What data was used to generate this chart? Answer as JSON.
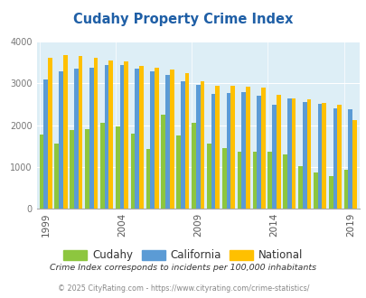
{
  "title": "Cudahy Property Crime Index",
  "years": [
    1999,
    2000,
    2001,
    2002,
    2003,
    2004,
    2005,
    2006,
    2007,
    2008,
    2009,
    2010,
    2011,
    2012,
    2013,
    2014,
    2015,
    2016,
    2017,
    2018,
    2019
  ],
  "cudahy": [
    1780,
    1560,
    1880,
    1900,
    2060,
    1980,
    1800,
    1420,
    2250,
    1750,
    2060,
    1560,
    1450,
    1370,
    1370,
    1370,
    1300,
    1020,
    870,
    790,
    940
  ],
  "california": [
    3100,
    3300,
    3350,
    3380,
    3450,
    3450,
    3350,
    3300,
    3200,
    3060,
    2970,
    2750,
    2760,
    2800,
    2700,
    2490,
    2630,
    2560,
    2500,
    2400,
    2380
  ],
  "national": [
    3620,
    3670,
    3650,
    3610,
    3560,
    3530,
    3430,
    3370,
    3330,
    3240,
    3060,
    2940,
    2950,
    2920,
    2890,
    2730,
    2630,
    2610,
    2530,
    2490,
    2120
  ],
  "cudahy_color": "#8dc63f",
  "california_color": "#5b9bd5",
  "national_color": "#ffc000",
  "bg_color": "#ddeef6",
  "ylim": [
    0,
    4000
  ],
  "yticks": [
    0,
    1000,
    2000,
    3000,
    4000
  ],
  "xtick_years": [
    1999,
    2004,
    2009,
    2014,
    2019
  ],
  "footnote1": "Crime Index corresponds to incidents per 100,000 inhabitants",
  "footnote2": "© 2025 CityRating.com - https://www.cityrating.com/crime-statistics/",
  "title_color": "#1f5fa6",
  "footnote1_color": "#333333",
  "footnote2_color": "#888888",
  "legend_label_color": "#333333"
}
